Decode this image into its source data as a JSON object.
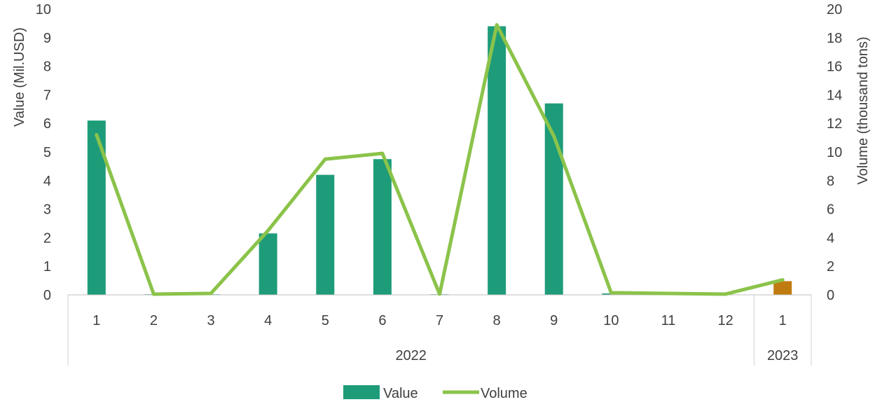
{
  "chart_data": {
    "type": "bar",
    "categories": [
      "1",
      "2",
      "3",
      "4",
      "5",
      "6",
      "7",
      "8",
      "9",
      "10",
      "11",
      "12",
      "1"
    ],
    "groups": [
      {
        "label": "2022",
        "count": 12
      },
      {
        "label": "2023",
        "count": 1
      }
    ],
    "series": [
      {
        "name": "Value",
        "type": "bar",
        "axis": "left",
        "values": [
          6.1,
          0.02,
          0.02,
          2.15,
          4.2,
          4.75,
          0.02,
          9.4,
          6.7,
          0.05,
          0,
          0,
          0.48
        ],
        "color": "#1e9c7a",
        "highlight_color": "#c07b10",
        "highlight_index": 12
      },
      {
        "name": "Volume",
        "type": "line",
        "axis": "right",
        "values": [
          11.2,
          0.05,
          0.1,
          4.5,
          9.5,
          9.9,
          0.05,
          18.9,
          11.1,
          0.15,
          0.1,
          0.05,
          1.05
        ],
        "color": "#8bc34a"
      }
    ],
    "ylabel": "Value (Mil.USD)",
    "ylim": [
      0,
      10
    ],
    "yticks": [
      "0",
      "1",
      "2",
      "3",
      "4",
      "5",
      "6",
      "7",
      "8",
      "9",
      "10"
    ],
    "y2label": "Volume (thousand tons)",
    "y2lim": [
      0,
      20
    ],
    "y2ticks": [
      "0",
      "2",
      "4",
      "6",
      "8",
      "10",
      "12",
      "14",
      "16",
      "18",
      "20"
    ],
    "grid": false,
    "legend_position": "bottom"
  }
}
